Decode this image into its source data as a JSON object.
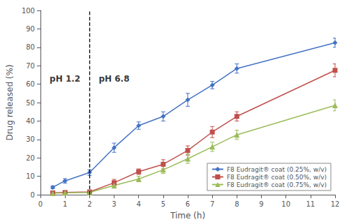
{
  "chart_data": {
    "type": "line",
    "xlabel": "Time (h)",
    "ylabel": "Drug released (%)",
    "x": [
      0.5,
      1,
      2,
      3,
      4,
      5,
      6,
      7,
      8,
      12
    ],
    "series": [
      {
        "name": "F8 Eudragit® coat (0.25%, w/v)",
        "color": "#4472C4",
        "marker": "diamond",
        "values": [
          4.0,
          7.5,
          12.0,
          25.5,
          37.5,
          42.5,
          51.5,
          59.5,
          68.5,
          82.5
        ],
        "errors": [
          0.8,
          1.2,
          1.5,
          2.5,
          2.0,
          2.5,
          3.5,
          2.0,
          2.5,
          2.5
        ]
      },
      {
        "name": "F8 Eudragit® coat (0.50%, w/v)",
        "color": "#C0504D",
        "marker": "square",
        "values": [
          1.0,
          1.2,
          1.5,
          6.5,
          12.5,
          16.5,
          24.0,
          34.0,
          42.5,
          67.5
        ],
        "errors": [
          0.5,
          0.5,
          0.5,
          1.8,
          1.5,
          2.5,
          2.5,
          3.0,
          2.5,
          3.5
        ]
      },
      {
        "name": "F8 Eudragit® coat (0.75%, w/v)",
        "color": "#9BBB59",
        "marker": "triangle",
        "values": [
          0.8,
          1.0,
          1.2,
          5.0,
          8.5,
          13.5,
          19.5,
          26.0,
          32.5,
          48.5
        ],
        "errors": [
          0.4,
          0.4,
          0.4,
          1.5,
          1.5,
          2.0,
          2.5,
          2.5,
          2.5,
          3.0
        ]
      }
    ],
    "vline": {
      "x": 2,
      "color": "#000000",
      "line_style": "dashed"
    },
    "annotations": [
      {
        "text": "pH 1.2",
        "x": 1.0,
        "y": 63
      },
      {
        "text": "pH 6.8",
        "x": 3.0,
        "y": 63
      }
    ],
    "xlim": [
      0,
      12
    ],
    "xticks": [
      0,
      1,
      2,
      3,
      4,
      5,
      6,
      7,
      8,
      9,
      10,
      11,
      12
    ],
    "ylim": [
      0,
      100
    ],
    "yticks": [
      0,
      10,
      20,
      30,
      40,
      50,
      60,
      70,
      80,
      90,
      100
    ],
    "grid": false,
    "legend": "lower right"
  }
}
